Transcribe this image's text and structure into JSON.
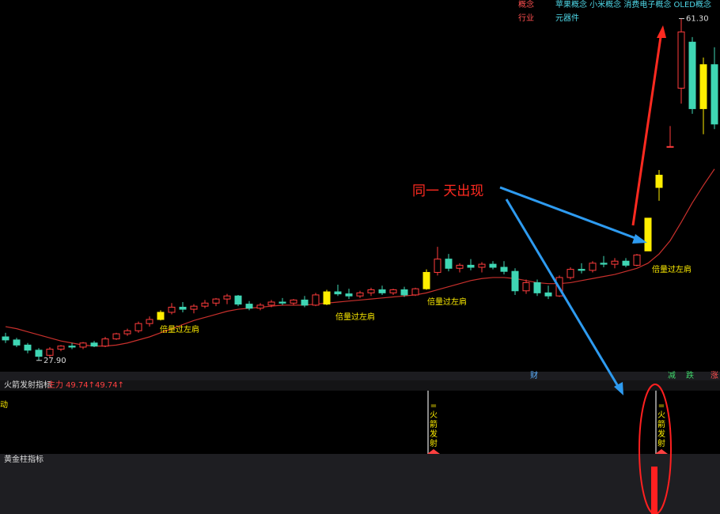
{
  "chart_data": {
    "type": "candlestick",
    "ylim": [
      26.8,
      62.5
    ],
    "up_color": "#ff3c3c",
    "down_color": "#3fd6b4",
    "highlight_color": "#ffee00",
    "highlight": [
      14,
      29,
      38,
      58,
      59,
      63
    ],
    "ohlc": [
      [
        30.2,
        30.6,
        29.6,
        29.9
      ],
      [
        29.9,
        30.1,
        29.2,
        29.4
      ],
      [
        29.4,
        29.6,
        28.6,
        28.9
      ],
      [
        28.9,
        29.1,
        27.9,
        28.3
      ],
      [
        28.4,
        29.2,
        28.2,
        29.0
      ],
      [
        29.0,
        29.4,
        28.8,
        29.3
      ],
      [
        29.3,
        29.6,
        29.0,
        29.2
      ],
      [
        29.2,
        29.7,
        29.0,
        29.6
      ],
      [
        29.6,
        29.8,
        29.2,
        29.3
      ],
      [
        29.3,
        30.2,
        29.2,
        30.0
      ],
      [
        30.0,
        30.6,
        29.9,
        30.5
      ],
      [
        30.5,
        31.0,
        30.3,
        30.8
      ],
      [
        30.8,
        31.7,
        30.6,
        31.5
      ],
      [
        31.5,
        32.2,
        31.2,
        31.9
      ],
      [
        31.9,
        32.8,
        31.8,
        32.6
      ],
      [
        32.6,
        33.5,
        32.4,
        33.1
      ],
      [
        33.1,
        33.6,
        32.6,
        32.9
      ],
      [
        32.9,
        33.4,
        32.5,
        33.2
      ],
      [
        33.2,
        33.8,
        33.0,
        33.5
      ],
      [
        33.5,
        34.0,
        33.2,
        33.9
      ],
      [
        33.9,
        34.4,
        33.4,
        34.2
      ],
      [
        34.2,
        34.3,
        33.2,
        33.4
      ],
      [
        33.4,
        33.7,
        32.8,
        33.0
      ],
      [
        33.0,
        33.5,
        32.8,
        33.3
      ],
      [
        33.3,
        33.8,
        33.1,
        33.6
      ],
      [
        33.6,
        34.0,
        33.3,
        33.5
      ],
      [
        33.5,
        33.9,
        33.3,
        33.8
      ],
      [
        33.8,
        34.2,
        33.1,
        33.3
      ],
      [
        33.3,
        34.5,
        33.2,
        34.3
      ],
      [
        33.4,
        34.8,
        33.3,
        34.6
      ],
      [
        34.6,
        35.3,
        34.2,
        34.4
      ],
      [
        34.4,
        34.9,
        33.9,
        34.2
      ],
      [
        34.2,
        34.7,
        34.0,
        34.5
      ],
      [
        34.5,
        35.0,
        34.2,
        34.8
      ],
      [
        34.8,
        35.2,
        34.3,
        34.5
      ],
      [
        34.5,
        34.9,
        34.3,
        34.8
      ],
      [
        34.8,
        35.1,
        34.1,
        34.3
      ],
      [
        34.3,
        35.0,
        34.2,
        34.9
      ],
      [
        34.9,
        36.8,
        34.8,
        36.5
      ],
      [
        36.5,
        39.0,
        36.2,
        37.8
      ],
      [
        37.8,
        38.3,
        36.6,
        36.9
      ],
      [
        36.9,
        37.4,
        36.5,
        37.2
      ],
      [
        37.2,
        37.8,
        36.7,
        37.0
      ],
      [
        37.0,
        37.5,
        36.5,
        37.3
      ],
      [
        37.3,
        37.6,
        36.8,
        37.0
      ],
      [
        37.0,
        37.6,
        36.3,
        36.6
      ],
      [
        36.6,
        36.9,
        34.3,
        34.7
      ],
      [
        34.7,
        35.8,
        34.4,
        35.5
      ],
      [
        35.5,
        35.8,
        34.2,
        34.5
      ],
      [
        34.5,
        35.2,
        33.9,
        34.2
      ],
      [
        34.2,
        36.2,
        34.1,
        36.0
      ],
      [
        36.0,
        37.0,
        35.8,
        36.8
      ],
      [
        36.8,
        37.4,
        36.4,
        36.7
      ],
      [
        36.7,
        37.6,
        36.5,
        37.4
      ],
      [
        37.4,
        38.1,
        37.0,
        37.3
      ],
      [
        37.3,
        37.9,
        36.9,
        37.6
      ],
      [
        37.6,
        37.9,
        37.0,
        37.2
      ],
      [
        37.2,
        38.3,
        37.1,
        38.2
      ],
      [
        38.6,
        41.8,
        38.6,
        41.8
      ],
      [
        44.8,
        46.5,
        43.5,
        46.0
      ],
      [
        48.8,
        50.8,
        48.8,
        48.8
      ],
      [
        54.5,
        61.3,
        53.0,
        60.0
      ],
      [
        59.0,
        59.5,
        52.0,
        52.5
      ],
      [
        52.5,
        57.5,
        50.0,
        56.8
      ],
      [
        56.8,
        58.5,
        50.5,
        51.0
      ]
    ],
    "ma": {
      "color": "#c8302c",
      "values": [
        31.2,
        31.0,
        30.7,
        30.4,
        30.1,
        29.8,
        29.6,
        29.4,
        29.3,
        29.3,
        29.4,
        29.6,
        29.9,
        30.2,
        30.6,
        31.0,
        31.4,
        31.8,
        32.1,
        32.4,
        32.7,
        32.9,
        33.0,
        33.1,
        33.2,
        33.3,
        33.3,
        33.3,
        33.4,
        33.5,
        33.6,
        33.7,
        33.8,
        33.9,
        34.0,
        34.1,
        34.2,
        34.3,
        34.5,
        34.8,
        35.1,
        35.4,
        35.7,
        35.9,
        36.0,
        36.0,
        35.9,
        35.7,
        35.5,
        35.4,
        35.4,
        35.5,
        35.7,
        35.9,
        36.1,
        36.3,
        36.6,
        36.9,
        37.4,
        38.3,
        39.6,
        41.4,
        43.3,
        45.0,
        46.6
      ]
    },
    "price_marks": [
      {
        "value": 27.9,
        "label": "27.90"
      },
      {
        "value": 61.3,
        "label": "61.30"
      }
    ],
    "signal_labels": [
      "倍量过左肩",
      "倍量过左肩",
      "倍量过左肩",
      "倍量过左肩"
    ],
    "annotation": "同一 天出现"
  },
  "ui": {
    "concept_label": "概念",
    "concepts": "苹果概念 小米概念 消费电子概念 OLED概念",
    "industry_label": "行业",
    "industry": "元器件",
    "strip": [
      "财",
      "减",
      "跌",
      "涨"
    ],
    "indicator1": {
      "name": "火箭发射指标",
      "main_label": "主力",
      "v1": "49.74↑",
      "v2": "49.74↑",
      "panel_text": "动",
      "marker": [
        "=",
        "火",
        "箭",
        "发",
        "射"
      ]
    },
    "indicator2": {
      "name": "黄金柱指标"
    }
  }
}
